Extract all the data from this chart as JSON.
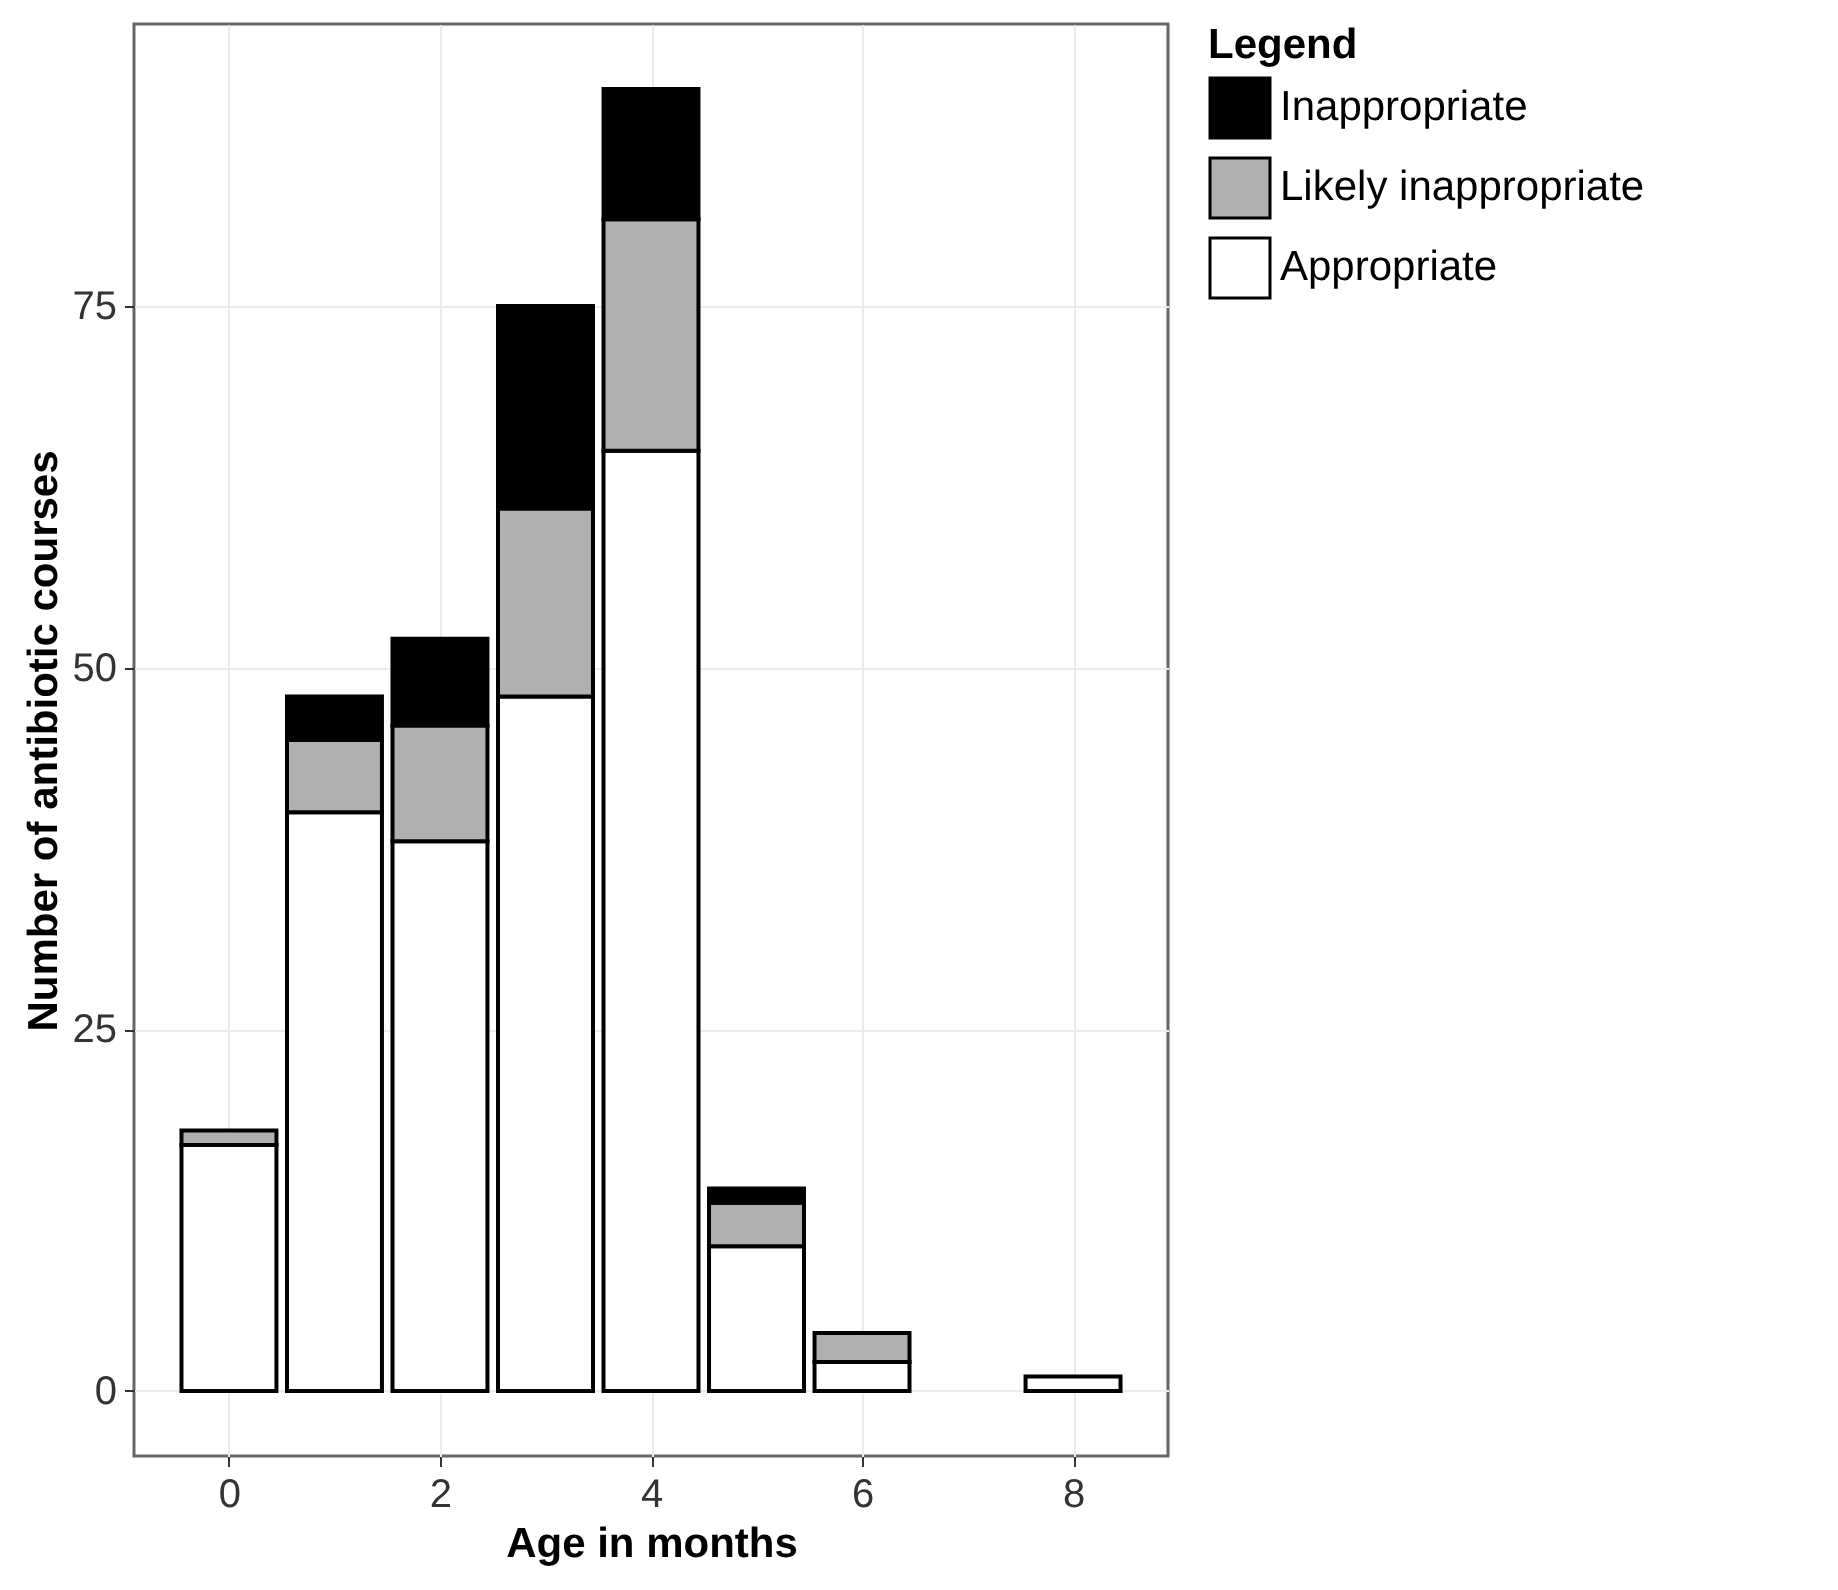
{
  "chart_data": {
    "type": "bar",
    "stacked": true,
    "xlabel": "Age in months",
    "ylabel": "Number of antibiotic courses",
    "legend_title": "Legend",
    "legend": "right",
    "grid": true,
    "x": [
      0,
      1,
      2,
      3,
      4,
      5,
      6,
      8
    ],
    "xlim": [
      -0.9,
      8.9
    ],
    "xticks": [
      0,
      2,
      4,
      6,
      8
    ],
    "ylim": [
      -4.5,
      94.5
    ],
    "yticks": [
      0,
      25,
      50,
      75
    ],
    "series": [
      {
        "name": "Appropriate",
        "color": "#ffffff",
        "values": [
          17,
          40,
          38,
          48,
          65,
          10,
          2,
          1
        ]
      },
      {
        "name": "Likely inappropriate",
        "color": "#b0b0b0",
        "values": [
          1,
          5,
          8,
          13,
          16,
          3,
          2,
          null
        ]
      },
      {
        "name": "Inappropriate",
        "color": "#000000",
        "values": [
          null,
          3,
          6,
          14,
          9,
          1,
          null,
          null
        ]
      }
    ]
  }
}
